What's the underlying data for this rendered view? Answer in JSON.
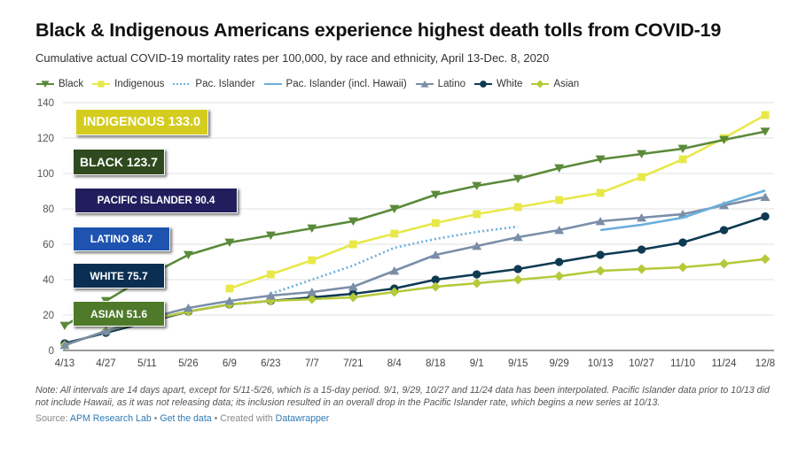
{
  "header": {
    "title": "Black & Indigenous Americans experience highest death tolls from COVID-19",
    "subtitle": "Cumulative actual COVID-19 mortality rates per 100,000, by race and ethnicity, April 13-Dec. 8, 2020"
  },
  "legend": [
    {
      "label": "Black",
      "color": "#5a8a3a",
      "marker": "triangle-down",
      "style": "solid"
    },
    {
      "label": "Indigenous",
      "color": "#e8e84a",
      "marker": "square",
      "style": "solid"
    },
    {
      "label": "Pac. Islander",
      "color": "#6aaedd",
      "marker": "none",
      "style": "dotted"
    },
    {
      "label": "Pac. Islander (incl. Hawaii)",
      "color": "#6aaedd",
      "marker": "none",
      "style": "solid"
    },
    {
      "label": "Latino",
      "color": "#7a8ea8",
      "marker": "triangle-up",
      "style": "solid"
    },
    {
      "label": "White",
      "color": "#0e3a52",
      "marker": "circle",
      "style": "solid"
    },
    {
      "label": "Asian",
      "color": "#b5c93a",
      "marker": "diamond",
      "style": "solid"
    }
  ],
  "chart_data": {
    "type": "line",
    "x": [
      "4/13",
      "4/27",
      "5/11",
      "5/26",
      "6/9",
      "6/23",
      "7/7",
      "7/21",
      "8/4",
      "8/18",
      "9/1",
      "9/15",
      "9/29",
      "10/13",
      "10/27",
      "11/10",
      "11/24",
      "12/8"
    ],
    "ylim": [
      0,
      140
    ],
    "yticks": [
      "0",
      "20",
      "40",
      "60",
      "80",
      "100",
      "120",
      "140"
    ],
    "grid": true,
    "series": [
      {
        "name": "Black",
        "color": "#5a8a3a",
        "marker": "triangle-down",
        "values": [
          14,
          28,
          42,
          54,
          61,
          65,
          69,
          73,
          80,
          88,
          93,
          97,
          103,
          108,
          111,
          114,
          119,
          123.7
        ]
      },
      {
        "name": "Indigenous",
        "color": "#e8e84a",
        "marker": "square",
        "values": [
          null,
          null,
          null,
          null,
          35,
          43,
          51,
          60,
          66,
          72,
          77,
          81,
          85,
          89,
          98,
          108,
          120,
          133.0
        ]
      },
      {
        "name": "Pac. Islander",
        "color": "#6aaedd",
        "marker": "none",
        "dotted": true,
        "values": [
          null,
          null,
          null,
          null,
          null,
          32,
          40,
          48,
          58,
          63,
          67,
          70,
          null,
          null,
          null,
          null,
          null,
          null
        ]
      },
      {
        "name": "Pac. Islander (incl. Hawaii)",
        "color": "#6aaedd",
        "marker": "none",
        "values": [
          null,
          null,
          null,
          null,
          null,
          null,
          null,
          null,
          null,
          null,
          null,
          null,
          null,
          68,
          71,
          75,
          83,
          90.4
        ]
      },
      {
        "name": "Latino",
        "color": "#7a8ea8",
        "marker": "triangle-up",
        "values": [
          3,
          11,
          18,
          24,
          28,
          31,
          33,
          36,
          45,
          54,
          59,
          64,
          68,
          73,
          75,
          77,
          82,
          86.7
        ]
      },
      {
        "name": "White",
        "color": "#0e3a52",
        "marker": "circle",
        "values": [
          4,
          10,
          16,
          22,
          26,
          28,
          30,
          32,
          35,
          40,
          43,
          46,
          50,
          54,
          57,
          61,
          68,
          75.7
        ]
      },
      {
        "name": "Asian",
        "color": "#b5c93a",
        "marker": "diamond",
        "values": [
          3,
          11,
          17,
          22,
          26,
          28,
          29,
          30,
          33,
          36,
          38,
          40,
          42,
          45,
          46,
          47,
          49,
          51.6
        ]
      }
    ]
  },
  "labels": [
    {
      "text": "INDIGENOUS 133.0",
      "bg": "#d4cc1e",
      "fg": "#ffffff"
    },
    {
      "text": "BLACK  123.7",
      "bg": "#2e4a1e",
      "fg": "#ffffff"
    },
    {
      "text": "PACIFIC ISLANDER   90.4",
      "bg": "#221e5e",
      "fg": "#ffffff"
    },
    {
      "text": "LATINO  86.7",
      "bg": "#1e53b0",
      "fg": "#ffffff"
    },
    {
      "text": "WHITE   75.7",
      "bg": "#0a2f52",
      "fg": "#ffffff"
    },
    {
      "text": "ASIAN   51.6",
      "bg": "#4e7a2a",
      "fg": "#ffffff"
    }
  ],
  "footer": {
    "note": "Note: All intervals are 14 days apart, except for 5/11-5/26, which is a 15-day period. 9/1, 9/29, 10/27 and 11/24 data has been interpolated. Pacific Islander data prior to 10/13 did not include Hawaii, as it was not releasing data; its inclusion resulted in an overall drop in the Pacific Islander rate, which begins a new series at 10/13.",
    "source_prefix": "Source: ",
    "source_link": "APM Research Lab",
    "sep1": " • ",
    "get_data": "Get the data",
    "sep2": " • Created with ",
    "datawrapper": "Datawrapper"
  }
}
